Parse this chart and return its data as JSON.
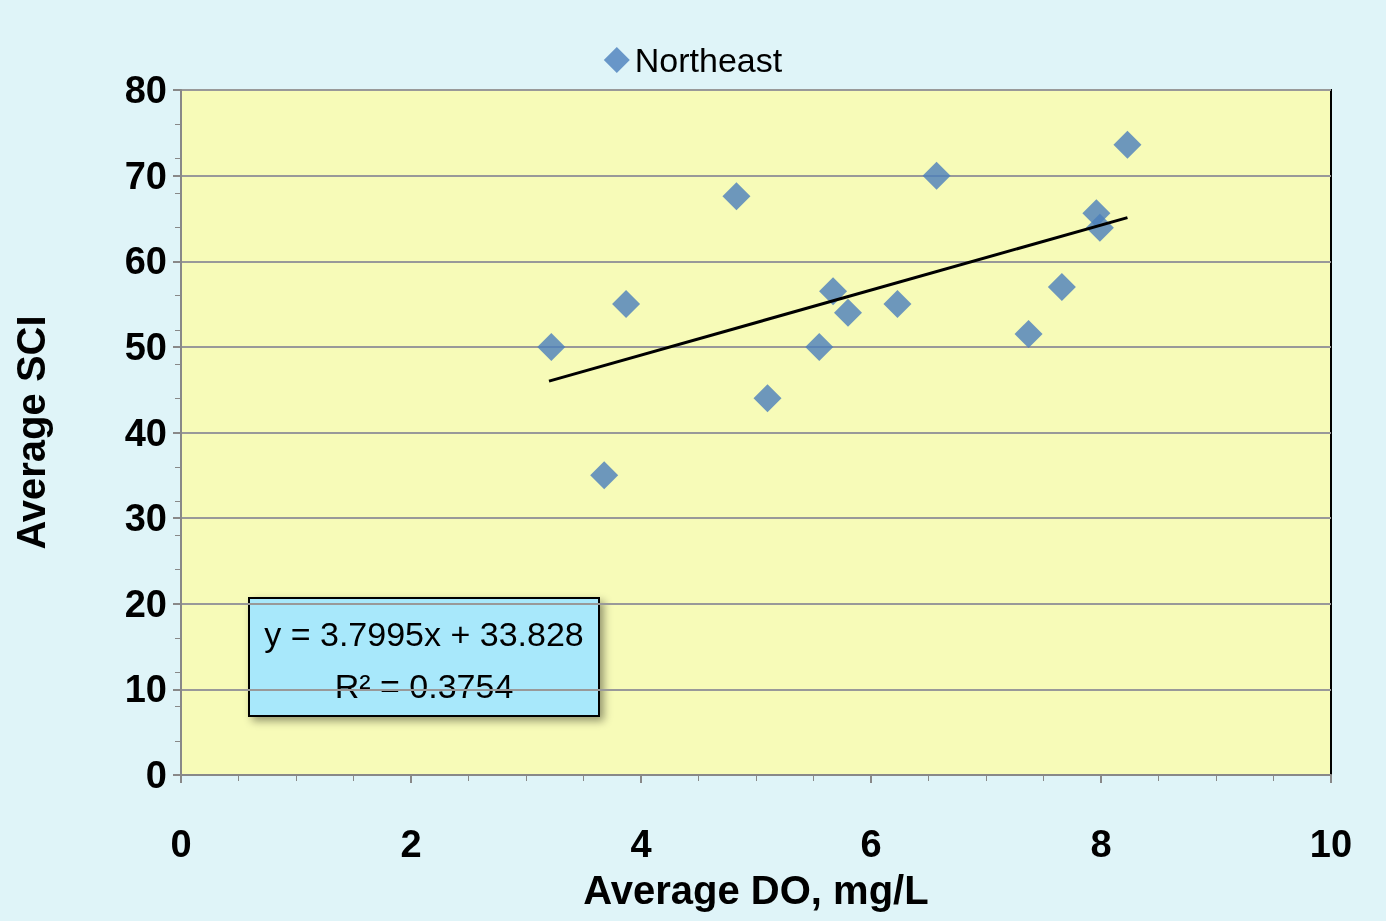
{
  "chart_data": {
    "type": "scatter",
    "xlabel": "Average DO, mg/L",
    "ylabel": "Average SCI",
    "xlim": [
      0,
      10
    ],
    "xticks": [
      0,
      2,
      4,
      6,
      8,
      10
    ],
    "ylim": [
      0,
      80
    ],
    "yticks": [
      0,
      10,
      20,
      30,
      40,
      50,
      60,
      70,
      80
    ],
    "grid": "y",
    "legend": "top",
    "marker": "diamond",
    "annotations": [
      "y = 3.7995x + 33.828",
      "R² = 0.3754"
    ],
    "series": [
      {
        "name": "Northeast",
        "color": "#4a7ebb",
        "x": [
          3.22,
          3.68,
          3.87,
          4.83,
          5.1,
          5.55,
          5.67,
          5.8,
          6.23,
          6.57,
          7.37,
          7.66,
          7.96,
          7.99,
          8.23
        ],
        "values": [
          50,
          35,
          55,
          67.6,
          44,
          50,
          56.5,
          54,
          55,
          70,
          51.5,
          57,
          65.6,
          63.9,
          73.6
        ]
      },
      {
        "type": "line",
        "color": "#000000",
        "marker": "none",
        "x": [
          3.2,
          8.23
        ],
        "values": [
          46,
          65.1
        ]
      }
    ]
  }
}
